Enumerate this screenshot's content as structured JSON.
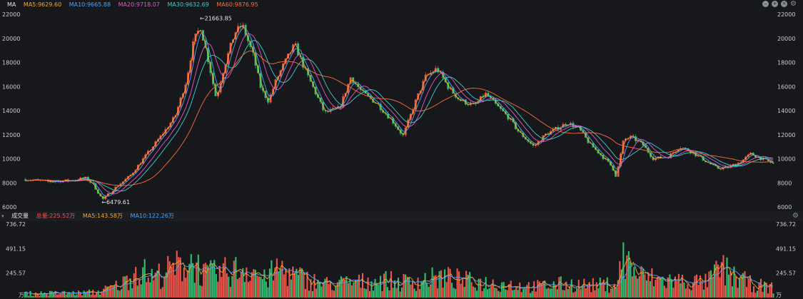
{
  "main_header": {
    "indicator": "MA",
    "ma_values": [
      {
        "label": "MA5:9629.60",
        "color": "#f5a623"
      },
      {
        "label": "MA10:9665.88",
        "color": "#4aa3ff"
      },
      {
        "label": "MA20:9718.07",
        "color": "#e356c9"
      },
      {
        "label": "MA30:9632.69",
        "color": "#3ad0d0"
      },
      {
        "label": "MA60:9876.95",
        "color": "#ff6a3d"
      }
    ],
    "controls": [
      "minus-icon",
      "plus-icon",
      "close-icon",
      "gear-icon"
    ]
  },
  "volume_header": {
    "indicator": "成交量",
    "values": [
      {
        "label": "总量:225.52万",
        "color": "#f0554a"
      },
      {
        "label": "MA5:143.58万",
        "color": "#f5a623"
      },
      {
        "label": "MA10:122.26万",
        "color": "#4aa3ff"
      }
    ],
    "controls": [
      "gear-icon"
    ]
  },
  "colors": {
    "up": "#f0554a",
    "down": "#2fbf71",
    "grid": "#2a2c33",
    "text": "#c9ccd3"
  },
  "chart_data": [
    {
      "type": "candlestick",
      "title": "",
      "y_ticks": [
        6000,
        8000,
        10000,
        12000,
        14000,
        16000,
        18000,
        20000,
        22000
      ],
      "ylim": [
        6000,
        22000
      ],
      "grid": false,
      "annotations": [
        {
          "text": "←21663.85",
          "value": 21663.85,
          "kind": "max",
          "x_fraction": 0.234
        },
        {
          "text": "←6479.61",
          "value": 6479.61,
          "kind": "min",
          "x_fraction": 0.103
        }
      ],
      "series": [
        {
          "name": "MA5",
          "value": 9629.6,
          "color": "#f5a623"
        },
        {
          "name": "MA10",
          "value": 9665.88,
          "color": "#4aa3ff"
        },
        {
          "name": "MA20",
          "value": 9718.07,
          "color": "#e356c9"
        },
        {
          "name": "MA30",
          "value": 9632.69,
          "color": "#3ad0d0"
        },
        {
          "name": "MA60",
          "value": 9876.95,
          "color": "#ff6a3d"
        }
      ],
      "close_path": [
        [
          0,
          8300
        ],
        [
          0.03,
          8100
        ],
        [
          0.06,
          8200
        ],
        [
          0.08,
          8400
        ],
        [
          0.09,
          7900
        ],
        [
          0.103,
          6600
        ],
        [
          0.12,
          7600
        ],
        [
          0.14,
          8600
        ],
        [
          0.16,
          10200
        ],
        [
          0.18,
          11800
        ],
        [
          0.2,
          13500
        ],
        [
          0.215,
          16500
        ],
        [
          0.225,
          19800
        ],
        [
          0.234,
          21000
        ],
        [
          0.245,
          18000
        ],
        [
          0.255,
          15000
        ],
        [
          0.265,
          17500
        ],
        [
          0.28,
          20500
        ],
        [
          0.29,
          21100
        ],
        [
          0.305,
          18500
        ],
        [
          0.315,
          15800
        ],
        [
          0.325,
          14800
        ],
        [
          0.335,
          16500
        ],
        [
          0.345,
          17800
        ],
        [
          0.36,
          19500
        ],
        [
          0.375,
          17200
        ],
        [
          0.39,
          15200
        ],
        [
          0.4,
          13800
        ],
        [
          0.42,
          14200
        ],
        [
          0.435,
          16800
        ],
        [
          0.45,
          15500
        ],
        [
          0.47,
          14600
        ],
        [
          0.49,
          13200
        ],
        [
          0.505,
          11900
        ],
        [
          0.52,
          14500
        ],
        [
          0.535,
          16800
        ],
        [
          0.55,
          17500
        ],
        [
          0.565,
          16000
        ],
        [
          0.58,
          14900
        ],
        [
          0.6,
          14400
        ],
        [
          0.615,
          15400
        ],
        [
          0.63,
          14400
        ],
        [
          0.645,
          13500
        ],
        [
          0.66,
          12200
        ],
        [
          0.68,
          11000
        ],
        [
          0.695,
          12000
        ],
        [
          0.71,
          12500
        ],
        [
          0.725,
          13000
        ],
        [
          0.74,
          12500
        ],
        [
          0.755,
          11200
        ],
        [
          0.77,
          10300
        ],
        [
          0.785,
          9300
        ],
        [
          0.79,
          8500
        ],
        [
          0.8,
          11600
        ],
        [
          0.81,
          11800
        ],
        [
          0.825,
          11200
        ],
        [
          0.84,
          10000
        ],
        [
          0.86,
          10200
        ],
        [
          0.875,
          11000
        ],
        [
          0.89,
          10600
        ],
        [
          0.91,
          9800
        ],
        [
          0.925,
          9200
        ],
        [
          0.94,
          9300
        ],
        [
          0.955,
          9700
        ],
        [
          0.97,
          10400
        ],
        [
          0.985,
          10000
        ],
        [
          1.0,
          9600
        ]
      ]
    },
    {
      "type": "bar",
      "title": "",
      "y_ticks": [
        245.57,
        491.15,
        736.72
      ],
      "ylim": [
        0,
        736.72
      ],
      "unit": "万",
      "series": [
        {
          "name": "总量",
          "value": 225.52,
          "color": "#f0554a"
        },
        {
          "name": "MA5",
          "value": 143.58,
          "color": "#f5a623"
        },
        {
          "name": "MA10",
          "value": 122.26,
          "color": "#4aa3ff"
        }
      ],
      "volume_envelope": [
        [
          0,
          60
        ],
        [
          0.08,
          70
        ],
        [
          0.1,
          90
        ],
        [
          0.13,
          200
        ],
        [
          0.15,
          430
        ],
        [
          0.17,
          300
        ],
        [
          0.2,
          430
        ],
        [
          0.215,
          520
        ],
        [
          0.225,
          540
        ],
        [
          0.24,
          330
        ],
        [
          0.26,
          360
        ],
        [
          0.28,
          400
        ],
        [
          0.3,
          460
        ],
        [
          0.32,
          260
        ],
        [
          0.34,
          440
        ],
        [
          0.36,
          320
        ],
        [
          0.38,
          260
        ],
        [
          0.4,
          200
        ],
        [
          0.44,
          220
        ],
        [
          0.48,
          260
        ],
        [
          0.5,
          220
        ],
        [
          0.53,
          260
        ],
        [
          0.56,
          300
        ],
        [
          0.6,
          230
        ],
        [
          0.64,
          200
        ],
        [
          0.68,
          160
        ],
        [
          0.72,
          200
        ],
        [
          0.76,
          180
        ],
        [
          0.79,
          200
        ],
        [
          0.8,
          600
        ],
        [
          0.82,
          320
        ],
        [
          0.85,
          260
        ],
        [
          0.88,
          240
        ],
        [
          0.91,
          220
        ],
        [
          0.93,
          430
        ],
        [
          0.95,
          300
        ],
        [
          0.97,
          200
        ],
        [
          1.0,
          140
        ]
      ]
    }
  ]
}
